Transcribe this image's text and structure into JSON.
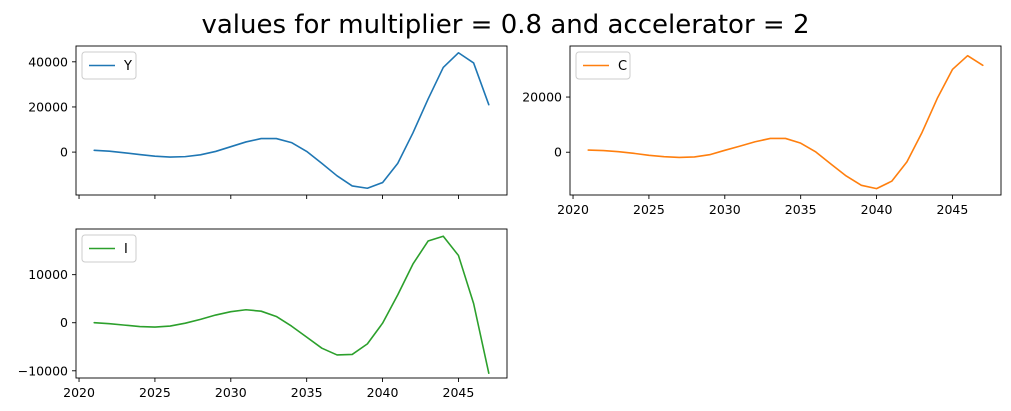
{
  "figure": {
    "title": "values for multiplier = 0.8 and accelerator = 2"
  },
  "chart_data": [
    {
      "type": "line",
      "panel": "top-left",
      "legend_placement": "upper-left",
      "grid": false,
      "xlim": [
        2019.8,
        2048.2
      ],
      "ylim": [
        -19000,
        47000
      ],
      "xticks": [
        2020,
        2025,
        2030,
        2035,
        2040,
        2045
      ],
      "xtick_labels": [
        "",
        "",
        "",
        "",
        "",
        ""
      ],
      "yticks": [
        0,
        20000,
        40000
      ],
      "ytick_labels": [
        "0",
        "20000",
        "40000"
      ],
      "series": [
        {
          "name": "Y",
          "color": "#1f77b4",
          "x": [
            2021,
            2022,
            2023,
            2024,
            2025,
            2026,
            2027,
            2028,
            2029,
            2030,
            2031,
            2032,
            2033,
            2034,
            2035,
            2036,
            2037,
            2038,
            2039,
            2040,
            2041,
            2042,
            2043,
            2044,
            2045,
            2046,
            2047
          ],
          "y": [
            800,
            400,
            -300,
            -1100,
            -1800,
            -2200,
            -2000,
            -1200,
            300,
            2400,
            4500,
            6000,
            6000,
            4200,
            300,
            -5000,
            -10500,
            -15000,
            -16000,
            -13500,
            -5000,
            8500,
            23500,
            37500,
            44000,
            39500,
            21000
          ]
        }
      ]
    },
    {
      "type": "line",
      "panel": "top-right",
      "legend_placement": "upper-left",
      "grid": false,
      "xlim": [
        2019.8,
        2048.2
      ],
      "ylim": [
        -15500,
        38500
      ],
      "xticks": [
        2020,
        2025,
        2030,
        2035,
        2040,
        2045
      ],
      "xtick_labels": [
        "2020",
        "2025",
        "2030",
        "2035",
        "2040",
        "2045"
      ],
      "yticks": [
        0,
        20000
      ],
      "ytick_labels": [
        "0",
        "20000"
      ],
      "series": [
        {
          "name": "C",
          "color": "#ff7f0e",
          "x": [
            2021,
            2022,
            2023,
            2024,
            2025,
            2026,
            2027,
            2028,
            2029,
            2030,
            2031,
            2032,
            2033,
            2034,
            2035,
            2036,
            2037,
            2038,
            2039,
            2040,
            2041,
            2042,
            2043,
            2044,
            2045,
            2046,
            2047
          ],
          "y": [
            800,
            600,
            200,
            -400,
            -1100,
            -1600,
            -1900,
            -1700,
            -900,
            700,
            2200,
            3800,
            5000,
            5000,
            3300,
            100,
            -4300,
            -8600,
            -12000,
            -13200,
            -10500,
            -3500,
            7200,
            19500,
            30000,
            35000,
            31500
          ]
        }
      ]
    },
    {
      "type": "line",
      "panel": "bottom-left",
      "legend_placement": "upper-left",
      "grid": false,
      "xlim": [
        2019.8,
        2048.2
      ],
      "ylim": [
        -11500,
        19500
      ],
      "xticks": [
        2020,
        2025,
        2030,
        2035,
        2040,
        2045
      ],
      "xtick_labels": [
        "2020",
        "2025",
        "2030",
        "2035",
        "2040",
        "2045"
      ],
      "yticks": [
        -10000,
        0,
        10000
      ],
      "ytick_labels": [
        "−10000",
        "0",
        "10000"
      ],
      "series": [
        {
          "name": "I",
          "color": "#2ca02c",
          "x": [
            2021,
            2022,
            2023,
            2024,
            2025,
            2026,
            2027,
            2028,
            2029,
            2030,
            2031,
            2032,
            2033,
            2034,
            2035,
            2036,
            2037,
            2038,
            2039,
            2040,
            2041,
            2042,
            2043,
            2044,
            2045,
            2046,
            2047
          ],
          "y": [
            0,
            -200,
            -500,
            -800,
            -900,
            -700,
            -100,
            700,
            1600,
            2300,
            2700,
            2400,
            1300,
            -700,
            -3000,
            -5300,
            -6700,
            -6600,
            -4400,
            -100,
            5800,
            12200,
            17000,
            18000,
            14000,
            4000,
            -10500
          ]
        }
      ]
    }
  ]
}
